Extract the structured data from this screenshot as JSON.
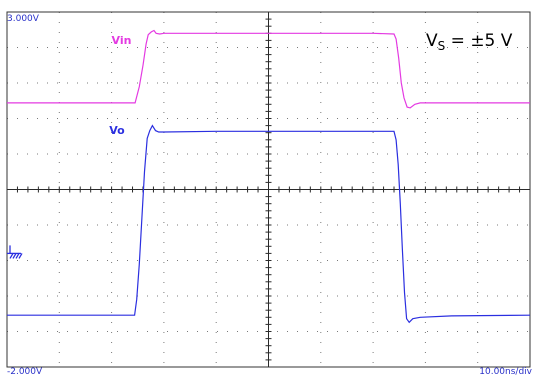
{
  "chart_data": {
    "type": "line",
    "title": "",
    "annotation": {
      "main": "V",
      "sub": "S",
      "rest": " = ±5 V"
    },
    "y_top_label": "3.000V",
    "y_bottom_label": "-2.000V",
    "x_scale_label": "10.00ns/div",
    "ylim": [
      -2.0,
      3.0
    ],
    "xlim": [
      0,
      100
    ],
    "grid": true,
    "divisions": {
      "x": 10,
      "y": 10
    },
    "series": [
      {
        "name": "Vin",
        "color": "#e43ae2",
        "points": [
          [
            0,
            1.72
          ],
          [
            24.5,
            1.72
          ],
          [
            25.3,
            1.95
          ],
          [
            26.0,
            2.25
          ],
          [
            26.6,
            2.55
          ],
          [
            27.0,
            2.68
          ],
          [
            27.6,
            2.72
          ],
          [
            28.1,
            2.74
          ],
          [
            28.5,
            2.7
          ],
          [
            29.2,
            2.69
          ],
          [
            30.0,
            2.7
          ],
          [
            40.0,
            2.7
          ],
          [
            60.0,
            2.7
          ],
          [
            70.0,
            2.7
          ],
          [
            74.0,
            2.69
          ],
          [
            74.4,
            2.62
          ],
          [
            74.9,
            2.35
          ],
          [
            75.4,
            2.0
          ],
          [
            75.9,
            1.79
          ],
          [
            76.5,
            1.66
          ],
          [
            77.1,
            1.65
          ],
          [
            78.0,
            1.7
          ],
          [
            79.0,
            1.72
          ],
          [
            88.0,
            1.72
          ],
          [
            100,
            1.72
          ]
        ]
      },
      {
        "name": "Vo",
        "color": "#2b2fe0",
        "points": [
          [
            0,
            -1.27
          ],
          [
            24.4,
            -1.27
          ],
          [
            24.8,
            -1.05
          ],
          [
            25.3,
            -0.55
          ],
          [
            25.8,
            0.1
          ],
          [
            26.3,
            0.75
          ],
          [
            26.8,
            1.22
          ],
          [
            27.3,
            1.33
          ],
          [
            27.8,
            1.4
          ],
          [
            28.4,
            1.33
          ],
          [
            29.0,
            1.31
          ],
          [
            30.0,
            1.31
          ],
          [
            40.0,
            1.32
          ],
          [
            60.0,
            1.32
          ],
          [
            74.0,
            1.32
          ],
          [
            74.4,
            1.2
          ],
          [
            74.8,
            0.85
          ],
          [
            75.2,
            0.3
          ],
          [
            75.6,
            -0.35
          ],
          [
            76.0,
            -0.95
          ],
          [
            76.4,
            -1.32
          ],
          [
            76.9,
            -1.37
          ],
          [
            77.6,
            -1.32
          ],
          [
            79.0,
            -1.3
          ],
          [
            85.0,
            -1.28
          ],
          [
            100,
            -1.27
          ]
        ]
      }
    ],
    "ground_marker": {
      "y": -0.4
    }
  }
}
